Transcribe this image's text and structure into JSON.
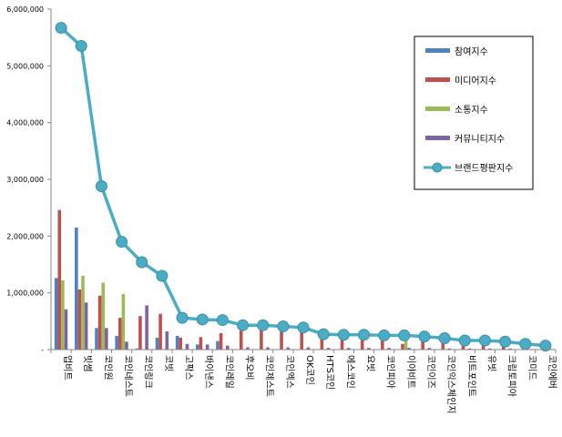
{
  "chart_data": {
    "type": "bar",
    "categories": [
      "업비트",
      "빗썸",
      "코인원",
      "코인네스트",
      "코인링크",
      "코빗",
      "고팍스",
      "바이낸스",
      "코인레일",
      "후오비",
      "코인제스트",
      "코인엑스",
      "OK코인",
      "HTS코인",
      "에스코인",
      "요빗",
      "코인피아",
      "이야비트",
      "코인이즈",
      "코인익스체인지",
      "비트포인트",
      "유빗",
      "크립토피아",
      "코미드",
      "코인에버"
    ],
    "ylim": [
      0,
      6000000
    ],
    "yticks": [
      0,
      1000000,
      2000000,
      3000000,
      4000000,
      5000000,
      6000000
    ],
    "ytick_labels": [
      "-",
      "1,000,000",
      "2,000,000",
      "3,000,000",
      "4,000,000",
      "5,000,000",
      "6,000,000"
    ],
    "series": [
      {
        "name": "참여지수",
        "type": "bar",
        "color": "#4F81BD",
        "values": [
          1260000,
          2150000,
          380000,
          240000,
          20000,
          210000,
          240000,
          90000,
          150000,
          0,
          0,
          0,
          0,
          0,
          0,
          0,
          0,
          0,
          0,
          0,
          0,
          0,
          0,
          0,
          0
        ]
      },
      {
        "name": "미디어지수",
        "type": "bar",
        "color": "#C0504D",
        "values": [
          2460000,
          1060000,
          950000,
          560000,
          590000,
          630000,
          210000,
          220000,
          290000,
          420000,
          390000,
          380000,
          310000,
          240000,
          230000,
          240000,
          250000,
          100000,
          200000,
          160000,
          140000,
          130000,
          130000,
          90000,
          80000
        ]
      },
      {
        "name": "소통지수",
        "type": "bar",
        "color": "#9BBB59",
        "values": [
          1220000,
          1300000,
          1180000,
          980000,
          0,
          0,
          0,
          0,
          0,
          0,
          0,
          0,
          0,
          0,
          0,
          0,
          0,
          250000,
          0,
          0,
          0,
          0,
          0,
          0,
          0
        ]
      },
      {
        "name": "커뮤니티지수",
        "type": "bar",
        "color": "#8064A2",
        "values": [
          710000,
          830000,
          380000,
          140000,
          780000,
          320000,
          100000,
          90000,
          70000,
          40000,
          40000,
          40000,
          40000,
          30000,
          30000,
          30000,
          30000,
          30000,
          30000,
          20000,
          20000,
          20000,
          20000,
          10000,
          10000
        ]
      },
      {
        "name": "브랜드평판지수",
        "type": "line",
        "color": "#4BACC6",
        "values": [
          5670000,
          5350000,
          2880000,
          1900000,
          1540000,
          1300000,
          560000,
          530000,
          520000,
          430000,
          430000,
          410000,
          390000,
          270000,
          260000,
          260000,
          250000,
          250000,
          230000,
          200000,
          160000,
          160000,
          140000,
          100000,
          70000
        ]
      }
    ],
    "legend_position": "right",
    "grid": false
  }
}
